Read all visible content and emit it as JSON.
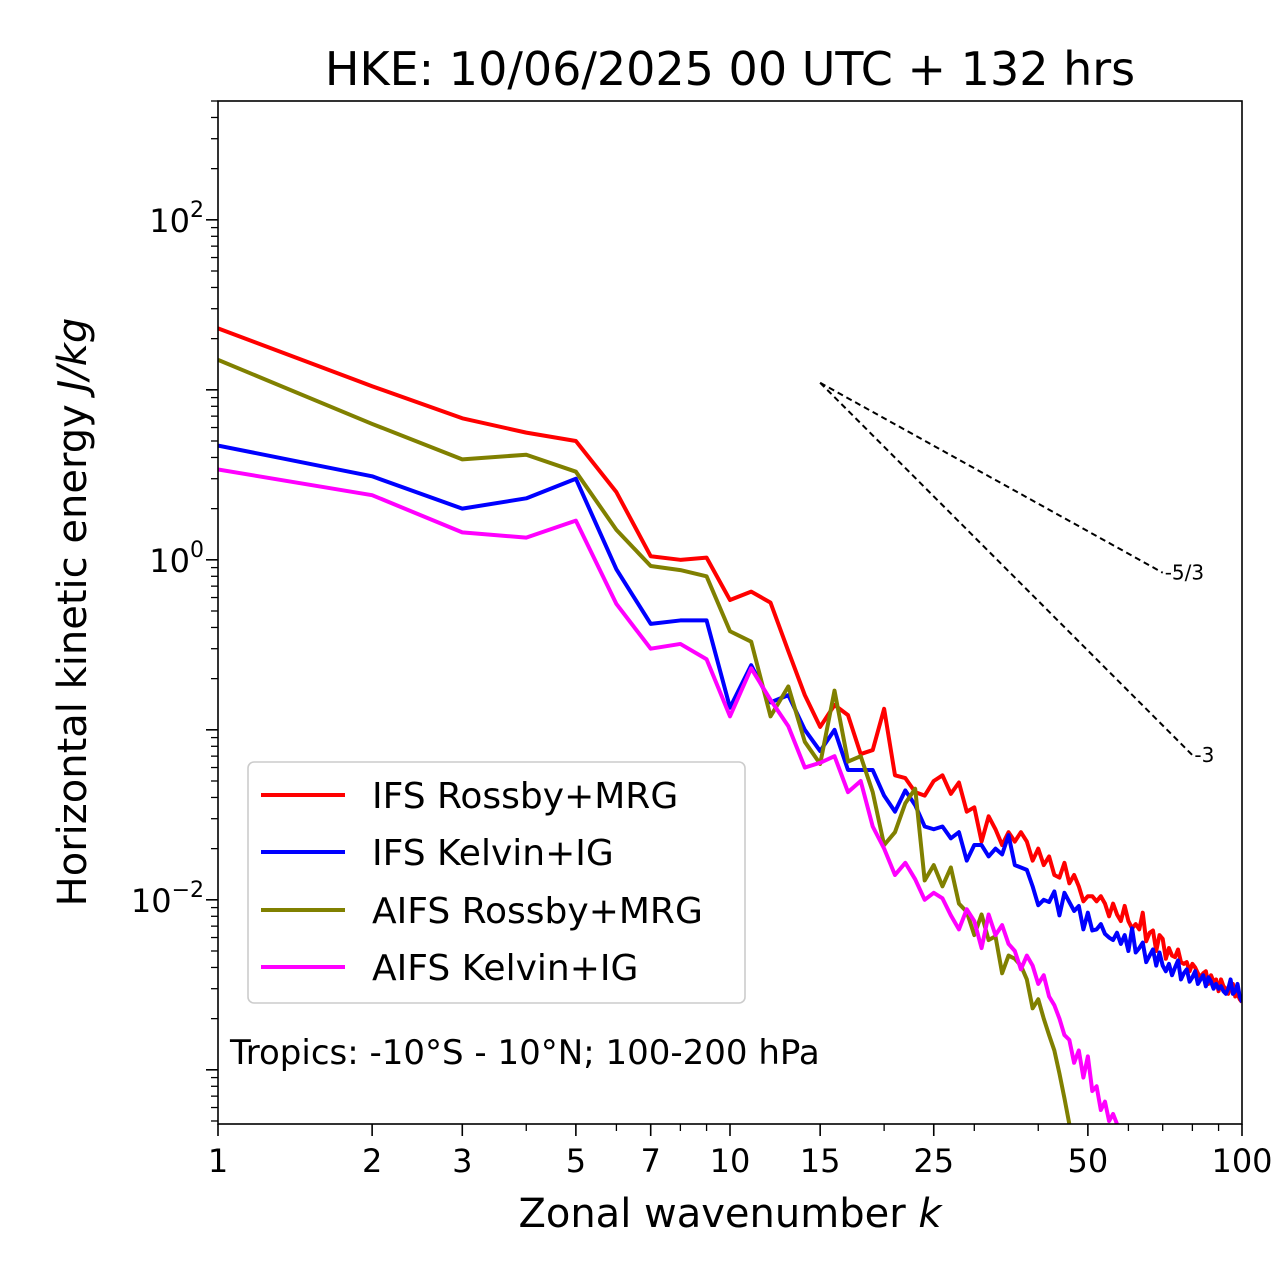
{
  "chart_data": {
    "type": "line",
    "title": "HKE: 10/06/2025 00 UTC + 132 hrs",
    "xlabel": "Zonal wavenumber",
    "xlabel_symbol": "k",
    "ylabel": "Horizontal kinetic energy",
    "ylabel_units": "J/kg",
    "xscale": "log",
    "yscale": "log",
    "xlim": [
      1,
      100
    ],
    "ylim": [
      0.00048,
      500
    ],
    "grid": false,
    "legend_position": "lower-left",
    "x_ticks": [
      {
        "value": 1,
        "label": "1"
      },
      {
        "value": 2,
        "label": "2"
      },
      {
        "value": 3,
        "label": "3"
      },
      {
        "value": 5,
        "label": "5"
      },
      {
        "value": 7,
        "label": "7"
      },
      {
        "value": 10,
        "label": "10"
      },
      {
        "value": 15,
        "label": "15"
      },
      {
        "value": 25,
        "label": "25"
      },
      {
        "value": 50,
        "label": "50"
      },
      {
        "value": 100,
        "label": "100"
      }
    ],
    "y_ticks": [
      {
        "value": 100,
        "mantissa": "10",
        "exponent": "2"
      },
      {
        "value": 1,
        "mantissa": "10",
        "exponent": "0"
      },
      {
        "value": 0.01,
        "mantissa": "10",
        "exponent": "−2"
      }
    ],
    "annotation": "Tropics: -10°S - 10°N; 100-200 hPa",
    "reference_lines": [
      {
        "label": "-5/3",
        "x": [
          15,
          70
        ],
        "y": [
          11,
          0.84
        ]
      },
      {
        "label": "-3",
        "x": [
          15,
          80
        ],
        "y": [
          11,
          0.071
        ]
      }
    ],
    "series": [
      {
        "name": "IFS Rossby+MRG",
        "color": "#ff0000",
        "x": [
          1,
          2,
          3,
          4,
          5,
          6,
          7,
          8,
          9,
          10,
          11,
          12,
          13,
          14,
          15,
          16,
          17,
          18,
          19,
          20,
          21,
          22,
          23,
          24,
          25,
          26,
          27,
          28,
          29,
          30,
          31,
          32,
          33,
          34,
          35,
          36,
          37,
          38,
          39,
          40,
          41,
          42,
          43,
          44,
          45,
          46,
          47,
          48,
          49,
          50,
          51,
          52,
          53,
          54,
          55,
          56,
          57,
          58,
          59,
          60,
          61,
          62,
          63,
          64,
          65,
          66,
          67,
          68,
          69,
          70,
          71,
          72,
          73,
          74,
          75,
          76,
          77,
          78,
          79,
          80,
          81,
          82,
          83,
          84,
          85,
          86,
          87,
          88,
          89,
          90,
          91,
          92,
          93,
          94,
          95,
          96,
          97,
          98,
          99,
          100
        ],
        "y": [
          23,
          10.5,
          6.8,
          5.6,
          5.0,
          2.5,
          1.05,
          1.0,
          1.03,
          0.58,
          0.65,
          0.56,
          0.29,
          0.16,
          0.104,
          0.14,
          0.122,
          0.072,
          0.076,
          0.133,
          0.054,
          0.052,
          0.043,
          0.041,
          0.05,
          0.054,
          0.042,
          0.049,
          0.033,
          0.035,
          0.022,
          0.031,
          0.026,
          0.021,
          0.025,
          0.022,
          0.025,
          0.022,
          0.017,
          0.02,
          0.016,
          0.018,
          0.014,
          0.0135,
          0.0165,
          0.0125,
          0.014,
          0.012,
          0.0098,
          0.0105,
          0.0105,
          0.0098,
          0.0105,
          0.0095,
          0.008,
          0.0095,
          0.0082,
          0.0075,
          0.0092,
          0.0075,
          0.0068,
          0.0072,
          0.0067,
          0.0084,
          0.0057,
          0.0064,
          0.0066,
          0.005,
          0.0062,
          0.0059,
          0.0045,
          0.0052,
          0.0047,
          0.0046,
          0.0051,
          0.0043,
          0.0042,
          0.0043,
          0.0038,
          0.0042,
          0.004,
          0.0037,
          0.0035,
          0.0037,
          0.0038,
          0.0032,
          0.0036,
          0.0033,
          0.0034,
          0.0029,
          0.0034,
          0.0031,
          0.003,
          0.0028,
          0.0031,
          0.0032,
          0.0027,
          0.0028,
          0.0026,
          0.0025
        ]
      },
      {
        "name": "IFS Kelvin+IG",
        "color": "#0000ff",
        "x": [
          1,
          2,
          3,
          4,
          5,
          6,
          7,
          8,
          9,
          10,
          11,
          12,
          13,
          14,
          15,
          16,
          17,
          18,
          19,
          20,
          21,
          22,
          23,
          24,
          25,
          26,
          27,
          28,
          29,
          30,
          31,
          32,
          33,
          34,
          35,
          36,
          37,
          38,
          39,
          40,
          41,
          42,
          43,
          44,
          45,
          46,
          47,
          48,
          49,
          50,
          51,
          52,
          53,
          54,
          55,
          56,
          57,
          58,
          59,
          60,
          61,
          62,
          63,
          64,
          65,
          66,
          67,
          68,
          69,
          70,
          71,
          72,
          73,
          74,
          75,
          76,
          77,
          78,
          79,
          80,
          81,
          82,
          83,
          84,
          85,
          86,
          87,
          88,
          89,
          90,
          91,
          92,
          93,
          94,
          95,
          96,
          97,
          98,
          99,
          100
        ],
        "y": [
          4.7,
          3.1,
          2.0,
          2.3,
          3.0,
          0.88,
          0.42,
          0.44,
          0.44,
          0.135,
          0.24,
          0.145,
          0.16,
          0.1,
          0.075,
          0.1,
          0.058,
          0.058,
          0.058,
          0.041,
          0.033,
          0.044,
          0.036,
          0.027,
          0.026,
          0.027,
          0.023,
          0.025,
          0.017,
          0.021,
          0.021,
          0.018,
          0.02,
          0.0185,
          0.024,
          0.016,
          0.0155,
          0.015,
          0.012,
          0.0093,
          0.01,
          0.0097,
          0.0112,
          0.0081,
          0.011,
          0.0097,
          0.0086,
          0.0092,
          0.0067,
          0.0084,
          0.0066,
          0.0067,
          0.0072,
          0.0063,
          0.006,
          0.0058,
          0.0064,
          0.0055,
          0.0062,
          0.005,
          0.0068,
          0.0049,
          0.0052,
          0.0056,
          0.0043,
          0.0047,
          0.0051,
          0.0041,
          0.0049,
          0.0041,
          0.0038,
          0.0042,
          0.0036,
          0.004,
          0.0044,
          0.0034,
          0.0037,
          0.0039,
          0.0033,
          0.0035,
          0.0038,
          0.0032,
          0.0034,
          0.0036,
          0.0031,
          0.0035,
          0.0033,
          0.003,
          0.0032,
          0.003,
          0.0031,
          0.0029,
          0.0028,
          0.003,
          0.0034,
          0.0028,
          0.0029,
          0.0032,
          0.0027,
          0.0025
        ]
      },
      {
        "name": "AIFS Rossby+MRG",
        "color": "#808000",
        "x": [
          1,
          2,
          3,
          4,
          5,
          6,
          7,
          8,
          9,
          10,
          11,
          12,
          13,
          14,
          15,
          16,
          17,
          18,
          19,
          20,
          21,
          22,
          23,
          24,
          25,
          26,
          27,
          28,
          29,
          30,
          31,
          32,
          33,
          34,
          35,
          36,
          37,
          38,
          39,
          40,
          41,
          42,
          43,
          44,
          45,
          46
        ],
        "y": [
          15,
          6.3,
          3.9,
          4.15,
          3.3,
          1.5,
          0.92,
          0.87,
          0.8,
          0.38,
          0.33,
          0.12,
          0.18,
          0.085,
          0.063,
          0.17,
          0.065,
          0.07,
          0.043,
          0.021,
          0.025,
          0.037,
          0.045,
          0.013,
          0.016,
          0.012,
          0.0155,
          0.0095,
          0.0085,
          0.0062,
          0.0082,
          0.0058,
          0.0061,
          0.0037,
          0.0047,
          0.0045,
          0.0041,
          0.0034,
          0.0023,
          0.0026,
          0.002,
          0.0016,
          0.0013,
          0.00095,
          0.00068,
          0.00048
        ]
      },
      {
        "name": "AIFS Kelvin+IG",
        "color": "#ff00ff",
        "x": [
          1,
          2,
          3,
          4,
          5,
          6,
          7,
          8,
          9,
          10,
          11,
          12,
          13,
          14,
          15,
          16,
          17,
          18,
          19,
          20,
          21,
          22,
          23,
          24,
          25,
          26,
          27,
          28,
          29,
          30,
          31,
          32,
          33,
          34,
          35,
          36,
          37,
          38,
          39,
          40,
          41,
          42,
          43,
          44,
          45,
          46,
          47,
          48,
          49,
          50,
          51,
          52,
          53,
          54,
          55,
          56,
          57
        ],
        "y": [
          3.4,
          2.4,
          1.45,
          1.35,
          1.7,
          0.55,
          0.3,
          0.32,
          0.26,
          0.12,
          0.23,
          0.15,
          0.105,
          0.06,
          0.064,
          0.07,
          0.043,
          0.05,
          0.027,
          0.02,
          0.014,
          0.0165,
          0.0132,
          0.01,
          0.011,
          0.0102,
          0.0081,
          0.0067,
          0.0088,
          0.0075,
          0.0052,
          0.0082,
          0.0062,
          0.0071,
          0.0055,
          0.005,
          0.0039,
          0.0047,
          0.0041,
          0.0032,
          0.0036,
          0.0027,
          0.0024,
          0.002,
          0.0016,
          0.0015,
          0.0011,
          0.0013,
          0.0009,
          0.0012,
          0.00075,
          0.0008,
          0.00058,
          0.00065,
          0.0005,
          0.00055,
          0.00048
        ]
      }
    ]
  }
}
